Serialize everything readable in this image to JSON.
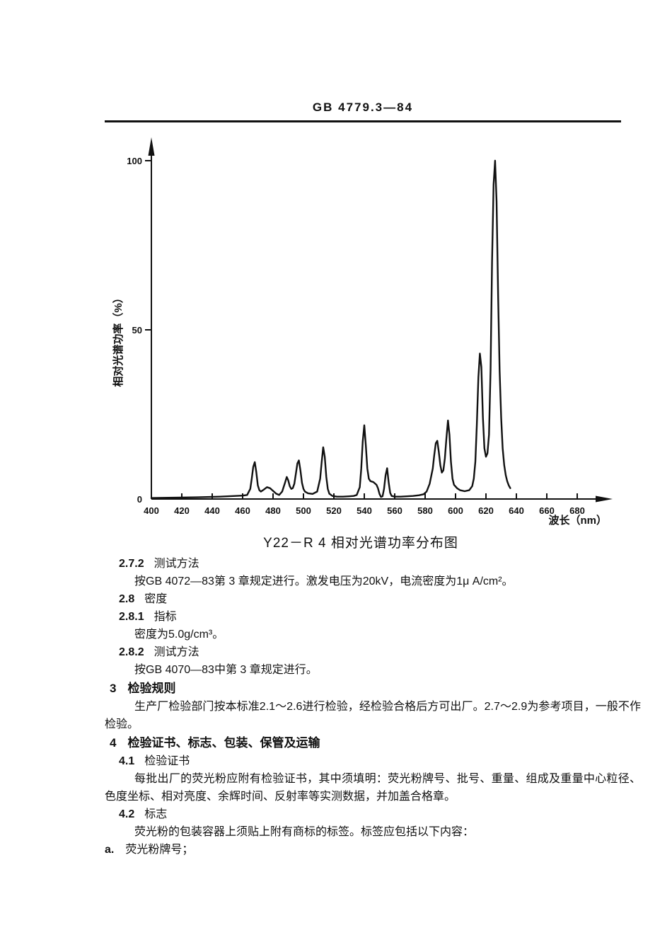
{
  "document": {
    "standard_number": "GB 4779.3—84"
  },
  "chart_data": {
    "type": "line",
    "title": "Y22－R 4 相对光谱功率分布图",
    "xlabel": "波长（nm）",
    "ylabel": "相对光谱功率（%）",
    "xlim": [
      400,
      692
    ],
    "ylim": [
      0,
      105
    ],
    "grid": false,
    "legend": "none",
    "x_ticks": [
      400,
      420,
      440,
      460,
      480,
      500,
      520,
      540,
      560,
      580,
      600,
      620,
      640,
      660,
      680
    ],
    "y_ticks": [
      0,
      50,
      100
    ],
    "peaks": [
      {
        "nm": 468,
        "pct": 11
      },
      {
        "nm": 476,
        "pct": 3.5
      },
      {
        "nm": 489,
        "pct": 6.5
      },
      {
        "nm": 497,
        "pct": 11.4
      },
      {
        "nm": 513,
        "pct": 15.3
      },
      {
        "nm": 540,
        "pct": 21.8
      },
      {
        "nm": 555,
        "pct": 9.1
      },
      {
        "nm": 588,
        "pct": 17.2
      },
      {
        "nm": 595,
        "pct": 23.2
      },
      {
        "nm": 616,
        "pct": 43
      },
      {
        "nm": 626,
        "pct": 100
      }
    ],
    "series": [
      {
        "name": "Y22-R4 相对光谱功率",
        "points": [
          [
            400,
            0.3
          ],
          [
            415,
            0.4
          ],
          [
            430,
            0.5
          ],
          [
            445,
            0.7
          ],
          [
            455,
            0.9
          ],
          [
            460,
            1.0
          ],
          [
            463,
            1.2
          ],
          [
            465,
            3
          ],
          [
            466,
            6
          ],
          [
            467,
            9.5
          ],
          [
            468,
            10.9
          ],
          [
            469,
            8
          ],
          [
            470,
            4
          ],
          [
            471,
            2.6
          ],
          [
            472,
            2.2
          ],
          [
            474,
            2.8
          ],
          [
            476,
            3.5
          ],
          [
            478,
            3.2
          ],
          [
            480,
            2.4
          ],
          [
            482,
            1.6
          ],
          [
            484,
            1.2
          ],
          [
            486,
            2.2
          ],
          [
            488,
            5
          ],
          [
            489,
            6.5
          ],
          [
            490,
            5.5
          ],
          [
            491,
            3.8
          ],
          [
            492,
            3.0
          ],
          [
            493,
            3.2
          ],
          [
            494,
            4.5
          ],
          [
            495,
            7.5
          ],
          [
            496,
            10.5
          ],
          [
            497,
            11.4
          ],
          [
            498,
            8.5
          ],
          [
            499,
            4.8
          ],
          [
            500,
            3.0
          ],
          [
            501,
            2.2
          ],
          [
            503,
            1.7
          ],
          [
            506,
            1.5
          ],
          [
            509,
            2.2
          ],
          [
            511,
            6
          ],
          [
            512,
            11
          ],
          [
            513,
            15.3
          ],
          [
            514,
            12.5
          ],
          [
            515,
            6.5
          ],
          [
            516,
            3
          ],
          [
            517,
            1.6
          ],
          [
            519,
            0.9
          ],
          [
            522,
            0.7
          ],
          [
            526,
            0.7
          ],
          [
            530,
            0.8
          ],
          [
            533,
            0.9
          ],
          [
            535,
            1.2
          ],
          [
            537,
            3.5
          ],
          [
            538,
            9
          ],
          [
            539,
            17
          ],
          [
            540,
            21.8
          ],
          [
            541,
            16
          ],
          [
            542,
            9
          ],
          [
            543,
            6
          ],
          [
            544,
            5.3
          ],
          [
            546,
            5
          ],
          [
            548,
            4.2
          ],
          [
            549,
            3.2
          ],
          [
            550,
            1.5
          ],
          [
            551,
            0.6
          ],
          [
            552,
            0.8
          ],
          [
            553,
            3
          ],
          [
            554,
            7
          ],
          [
            555,
            9.1
          ],
          [
            556,
            5
          ],
          [
            557,
            1.8
          ],
          [
            558,
            0.9
          ],
          [
            560,
            0.7
          ],
          [
            564,
            0.7
          ],
          [
            568,
            0.8
          ],
          [
            572,
            0.9
          ],
          [
            576,
            1.1
          ],
          [
            579,
            1.4
          ],
          [
            581,
            2.2
          ],
          [
            583,
            4.5
          ],
          [
            585,
            9
          ],
          [
            586,
            13
          ],
          [
            587,
            16.5
          ],
          [
            588,
            17.2
          ],
          [
            589,
            14
          ],
          [
            590,
            10
          ],
          [
            591,
            7.8
          ],
          [
            592,
            8.5
          ],
          [
            593,
            12
          ],
          [
            594,
            18
          ],
          [
            595,
            23.2
          ],
          [
            596,
            19
          ],
          [
            597,
            11
          ],
          [
            598,
            6
          ],
          [
            599,
            4.2
          ],
          [
            601,
            3.2
          ],
          [
            603,
            2.6
          ],
          [
            606,
            2.3
          ],
          [
            609,
            2.6
          ],
          [
            611,
            3.8
          ],
          [
            612,
            6
          ],
          [
            613,
            11
          ],
          [
            614,
            22
          ],
          [
            615,
            36
          ],
          [
            616,
            43
          ],
          [
            617,
            39
          ],
          [
            618,
            24
          ],
          [
            619,
            15
          ],
          [
            620,
            12.5
          ],
          [
            621,
            13.5
          ],
          [
            622,
            19
          ],
          [
            623,
            38
          ],
          [
            624,
            70
          ],
          [
            625,
            93
          ],
          [
            626,
            100
          ],
          [
            627,
            88
          ],
          [
            628,
            60
          ],
          [
            629,
            38
          ],
          [
            630,
            24
          ],
          [
            631,
            15
          ],
          [
            632,
            10
          ],
          [
            633,
            7
          ],
          [
            634,
            5.2
          ],
          [
            635,
            4
          ],
          [
            636,
            3.2
          ]
        ]
      }
    ]
  },
  "sections": [
    {
      "kind": "sub",
      "label": "2.7.2",
      "title": "测试方法"
    },
    {
      "kind": "body",
      "text": "按GB 4072—83第 3 章规定进行。激发电压为20kV，电流密度为1μ A/cm²。"
    },
    {
      "kind": "sub",
      "label": "2.8",
      "title": "密度"
    },
    {
      "kind": "sub",
      "label": "2.8.1",
      "title": "指标"
    },
    {
      "kind": "body",
      "text": "密度为5.0g/cm³。"
    },
    {
      "kind": "sub",
      "label": "2.8.2",
      "title": "测试方法"
    },
    {
      "kind": "body",
      "text": "按GB 4070—83中第 3 章规定进行。"
    },
    {
      "kind": "chapter",
      "label": "3",
      "title": "检验规则"
    },
    {
      "kind": "para",
      "text": "生产厂检验部门按本标准2.1～2.6进行检验，经检验合格后方可出厂。2.7～2.9为参考项目，一般不作检验。"
    },
    {
      "kind": "chapter",
      "label": "4",
      "title": "检验证书、标志、包装、保管及运输"
    },
    {
      "kind": "sub",
      "label": "4.1",
      "title": "检验证书"
    },
    {
      "kind": "para",
      "text": "每批出厂的荧光粉应附有检验证书，其中须填明：荧光粉牌号、批号、重量、组成及重量中心粒径、色度坐标、相对亮度、余辉时间、反射率等实测数据，并加盖合格章。"
    },
    {
      "kind": "sub",
      "label": "4.2",
      "title": "标志"
    },
    {
      "kind": "body",
      "text": "荧光粉的包装容器上须贴上附有商标的标签。标签应包括以下内容："
    },
    {
      "kind": "list_item",
      "label": "a.",
      "text": "荧光粉牌号；"
    }
  ],
  "colors": {
    "ink": "#111111",
    "paper": "#ffffff"
  }
}
